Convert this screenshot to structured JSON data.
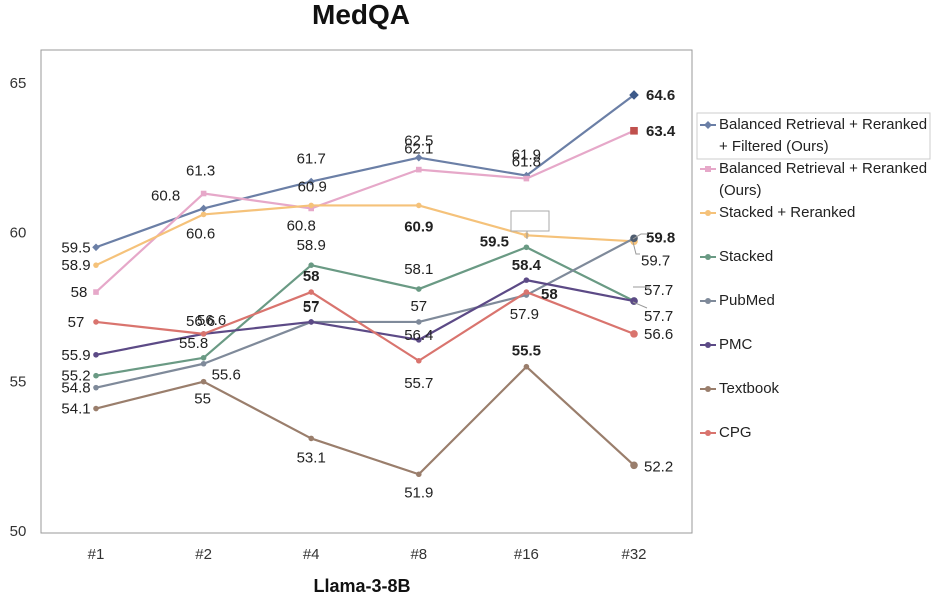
{
  "chart_data": {
    "type": "line",
    "title": "MedQA",
    "xlabel": "Llama-3-8B",
    "ylabel": "",
    "categories": [
      "#1",
      "#2",
      "#4",
      "#8",
      "#16",
      "#32"
    ],
    "ylim": [
      50,
      65
    ],
    "yticks": [
      50,
      55,
      60,
      65
    ],
    "grid": false,
    "legend_position": "right",
    "series": [
      {
        "name": "Balanced Retrieval + Reranked + Filtered (Ours)",
        "legend_lines": [
          "Balanced Retrieval + Reranked",
          "+ Filtered (Ours)"
        ],
        "values": [
          59.5,
          60.8,
          61.7,
          62.5,
          61.9,
          64.6
        ],
        "color": "#6b7fa6",
        "marker": "diamond",
        "final_marker": "diamond",
        "final_color": "#3d5a8a",
        "labels": [
          "59.5",
          "60.8",
          "61.7",
          "62.5",
          "61.9",
          "64.6"
        ]
      },
      {
        "name": "Balanced Retrieval + Reranked (Ours)",
        "legend_lines": [
          "Balanced Retrieval + Reranked",
          "(Ours)"
        ],
        "values": [
          58.0,
          61.3,
          60.8,
          62.1,
          61.8,
          63.4
        ],
        "color": "#e6a8c9",
        "marker": "square",
        "final_marker": "square",
        "final_color": "#c0504d",
        "labels": [
          "58",
          "61.3",
          "60.8",
          "62.1",
          "61.8",
          "63.4"
        ]
      },
      {
        "name": "Stacked + Reranked",
        "legend_lines": [
          "Stacked + Reranked"
        ],
        "values": [
          58.9,
          60.6,
          60.9,
          60.9,
          59.9,
          59.7
        ],
        "color": "#f5c27a",
        "marker": "circle",
        "final_marker": "circle",
        "final_color": "#f5c27a",
        "labels": [
          "58.9",
          "60.6",
          "60.9",
          "60.9",
          "59.9",
          "59.7"
        ]
      },
      {
        "name": "Stacked",
        "legend_lines": [
          "Stacked"
        ],
        "values": [
          55.2,
          55.8,
          58.9,
          58.1,
          59.5,
          57.7
        ],
        "color": "#6a9a84",
        "marker": "circle",
        "final_marker": "circle",
        "final_color": "#6a9a84",
        "labels": [
          "55.2",
          "55.8",
          "58.9",
          "58.1",
          "59.5",
          "57.7"
        ]
      },
      {
        "name": "PubMed",
        "legend_lines": [
          "PubMed"
        ],
        "values": [
          54.8,
          55.6,
          57.0,
          57.0,
          57.9,
          59.8
        ],
        "color": "#7f8a9a",
        "marker": "circle",
        "final_marker": "circle",
        "final_color": "#4f5d70",
        "labels": [
          "54.8",
          "55.6",
          "57",
          "57",
          "57.9",
          "59.8"
        ]
      },
      {
        "name": "PMC",
        "legend_lines": [
          "PMC"
        ],
        "values": [
          55.9,
          56.6,
          57.0,
          56.4,
          58.4,
          57.7
        ],
        "color": "#5c4a86",
        "marker": "circle",
        "final_marker": "circle",
        "final_color": "#5c4a86",
        "labels": [
          "55.9",
          "56.6",
          "57",
          "56.4",
          "58.4",
          "57.7"
        ]
      },
      {
        "name": "Textbook",
        "legend_lines": [
          "Textbook"
        ],
        "values": [
          54.1,
          55.0,
          53.1,
          51.9,
          55.5,
          52.2
        ],
        "color": "#9a7e6c",
        "marker": "circle",
        "final_marker": "circle",
        "final_color": "#9a7e6c",
        "labels": [
          "54.1",
          "55",
          "53.1",
          "51.9",
          "55.5",
          "52.2"
        ]
      },
      {
        "name": "CPG",
        "legend_lines": [
          "CPG"
        ],
        "values": [
          57.0,
          56.6,
          58.0,
          55.7,
          58.0,
          56.6
        ],
        "color": "#d9746e",
        "marker": "circle",
        "final_marker": "circle",
        "final_color": "#d9746e",
        "labels": [
          "57",
          "56.6",
          "58",
          "55.7",
          "58",
          "56.6"
        ]
      }
    ]
  }
}
